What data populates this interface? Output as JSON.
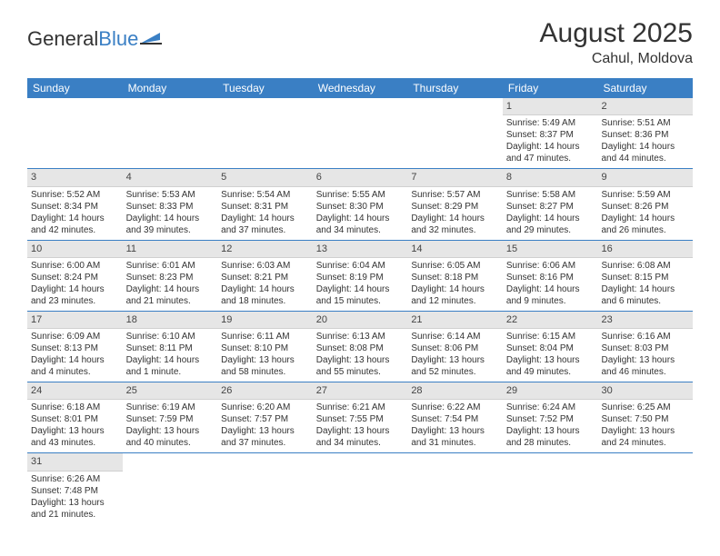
{
  "logo": {
    "general": "General",
    "blue": "Blue"
  },
  "title": "August 2025",
  "location": "Cahul, Moldova",
  "colors": {
    "header_bg": "#3a7fc4",
    "row_divider": "#3a7fc4",
    "daynum_bg": "#e6e6e6",
    "text": "#333333",
    "page_bg": "#ffffff"
  },
  "day_names": [
    "Sunday",
    "Monday",
    "Tuesday",
    "Wednesday",
    "Thursday",
    "Friday",
    "Saturday"
  ],
  "weeks": [
    [
      {
        "n": "",
        "sr": "",
        "ss": "",
        "dl": ""
      },
      {
        "n": "",
        "sr": "",
        "ss": "",
        "dl": ""
      },
      {
        "n": "",
        "sr": "",
        "ss": "",
        "dl": ""
      },
      {
        "n": "",
        "sr": "",
        "ss": "",
        "dl": ""
      },
      {
        "n": "",
        "sr": "",
        "ss": "",
        "dl": ""
      },
      {
        "n": "1",
        "sr": "Sunrise: 5:49 AM",
        "ss": "Sunset: 8:37 PM",
        "dl": "Daylight: 14 hours and 47 minutes."
      },
      {
        "n": "2",
        "sr": "Sunrise: 5:51 AM",
        "ss": "Sunset: 8:36 PM",
        "dl": "Daylight: 14 hours and 44 minutes."
      }
    ],
    [
      {
        "n": "3",
        "sr": "Sunrise: 5:52 AM",
        "ss": "Sunset: 8:34 PM",
        "dl": "Daylight: 14 hours and 42 minutes."
      },
      {
        "n": "4",
        "sr": "Sunrise: 5:53 AM",
        "ss": "Sunset: 8:33 PM",
        "dl": "Daylight: 14 hours and 39 minutes."
      },
      {
        "n": "5",
        "sr": "Sunrise: 5:54 AM",
        "ss": "Sunset: 8:31 PM",
        "dl": "Daylight: 14 hours and 37 minutes."
      },
      {
        "n": "6",
        "sr": "Sunrise: 5:55 AM",
        "ss": "Sunset: 8:30 PM",
        "dl": "Daylight: 14 hours and 34 minutes."
      },
      {
        "n": "7",
        "sr": "Sunrise: 5:57 AM",
        "ss": "Sunset: 8:29 PM",
        "dl": "Daylight: 14 hours and 32 minutes."
      },
      {
        "n": "8",
        "sr": "Sunrise: 5:58 AM",
        "ss": "Sunset: 8:27 PM",
        "dl": "Daylight: 14 hours and 29 minutes."
      },
      {
        "n": "9",
        "sr": "Sunrise: 5:59 AM",
        "ss": "Sunset: 8:26 PM",
        "dl": "Daylight: 14 hours and 26 minutes."
      }
    ],
    [
      {
        "n": "10",
        "sr": "Sunrise: 6:00 AM",
        "ss": "Sunset: 8:24 PM",
        "dl": "Daylight: 14 hours and 23 minutes."
      },
      {
        "n": "11",
        "sr": "Sunrise: 6:01 AM",
        "ss": "Sunset: 8:23 PM",
        "dl": "Daylight: 14 hours and 21 minutes."
      },
      {
        "n": "12",
        "sr": "Sunrise: 6:03 AM",
        "ss": "Sunset: 8:21 PM",
        "dl": "Daylight: 14 hours and 18 minutes."
      },
      {
        "n": "13",
        "sr": "Sunrise: 6:04 AM",
        "ss": "Sunset: 8:19 PM",
        "dl": "Daylight: 14 hours and 15 minutes."
      },
      {
        "n": "14",
        "sr": "Sunrise: 6:05 AM",
        "ss": "Sunset: 8:18 PM",
        "dl": "Daylight: 14 hours and 12 minutes."
      },
      {
        "n": "15",
        "sr": "Sunrise: 6:06 AM",
        "ss": "Sunset: 8:16 PM",
        "dl": "Daylight: 14 hours and 9 minutes."
      },
      {
        "n": "16",
        "sr": "Sunrise: 6:08 AM",
        "ss": "Sunset: 8:15 PM",
        "dl": "Daylight: 14 hours and 6 minutes."
      }
    ],
    [
      {
        "n": "17",
        "sr": "Sunrise: 6:09 AM",
        "ss": "Sunset: 8:13 PM",
        "dl": "Daylight: 14 hours and 4 minutes."
      },
      {
        "n": "18",
        "sr": "Sunrise: 6:10 AM",
        "ss": "Sunset: 8:11 PM",
        "dl": "Daylight: 14 hours and 1 minute."
      },
      {
        "n": "19",
        "sr": "Sunrise: 6:11 AM",
        "ss": "Sunset: 8:10 PM",
        "dl": "Daylight: 13 hours and 58 minutes."
      },
      {
        "n": "20",
        "sr": "Sunrise: 6:13 AM",
        "ss": "Sunset: 8:08 PM",
        "dl": "Daylight: 13 hours and 55 minutes."
      },
      {
        "n": "21",
        "sr": "Sunrise: 6:14 AM",
        "ss": "Sunset: 8:06 PM",
        "dl": "Daylight: 13 hours and 52 minutes."
      },
      {
        "n": "22",
        "sr": "Sunrise: 6:15 AM",
        "ss": "Sunset: 8:04 PM",
        "dl": "Daylight: 13 hours and 49 minutes."
      },
      {
        "n": "23",
        "sr": "Sunrise: 6:16 AM",
        "ss": "Sunset: 8:03 PM",
        "dl": "Daylight: 13 hours and 46 minutes."
      }
    ],
    [
      {
        "n": "24",
        "sr": "Sunrise: 6:18 AM",
        "ss": "Sunset: 8:01 PM",
        "dl": "Daylight: 13 hours and 43 minutes."
      },
      {
        "n": "25",
        "sr": "Sunrise: 6:19 AM",
        "ss": "Sunset: 7:59 PM",
        "dl": "Daylight: 13 hours and 40 minutes."
      },
      {
        "n": "26",
        "sr": "Sunrise: 6:20 AM",
        "ss": "Sunset: 7:57 PM",
        "dl": "Daylight: 13 hours and 37 minutes."
      },
      {
        "n": "27",
        "sr": "Sunrise: 6:21 AM",
        "ss": "Sunset: 7:55 PM",
        "dl": "Daylight: 13 hours and 34 minutes."
      },
      {
        "n": "28",
        "sr": "Sunrise: 6:22 AM",
        "ss": "Sunset: 7:54 PM",
        "dl": "Daylight: 13 hours and 31 minutes."
      },
      {
        "n": "29",
        "sr": "Sunrise: 6:24 AM",
        "ss": "Sunset: 7:52 PM",
        "dl": "Daylight: 13 hours and 28 minutes."
      },
      {
        "n": "30",
        "sr": "Sunrise: 6:25 AM",
        "ss": "Sunset: 7:50 PM",
        "dl": "Daylight: 13 hours and 24 minutes."
      }
    ],
    [
      {
        "n": "31",
        "sr": "Sunrise: 6:26 AM",
        "ss": "Sunset: 7:48 PM",
        "dl": "Daylight: 13 hours and 21 minutes."
      },
      {
        "n": "",
        "sr": "",
        "ss": "",
        "dl": ""
      },
      {
        "n": "",
        "sr": "",
        "ss": "",
        "dl": ""
      },
      {
        "n": "",
        "sr": "",
        "ss": "",
        "dl": ""
      },
      {
        "n": "",
        "sr": "",
        "ss": "",
        "dl": ""
      },
      {
        "n": "",
        "sr": "",
        "ss": "",
        "dl": ""
      },
      {
        "n": "",
        "sr": "",
        "ss": "",
        "dl": ""
      }
    ]
  ]
}
